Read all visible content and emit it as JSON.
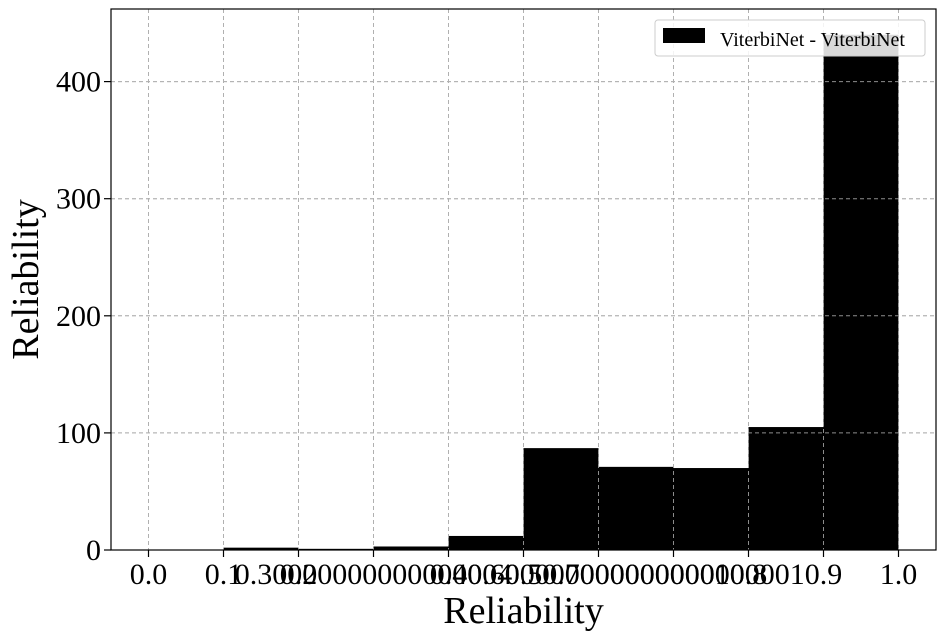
{
  "chart_data": {
    "type": "bar",
    "xlabel": "Reliability",
    "ylabel": "Reliability",
    "xlim": [
      -0.05,
      1.05
    ],
    "ylim": [
      0,
      462
    ],
    "grid": true,
    "legend_placement": "top-right",
    "x_ticks": [
      0.0,
      0.1,
      0.2,
      0.3,
      0.4,
      0.5,
      0.6,
      0.7,
      0.8,
      0.9,
      1.0
    ],
    "x_tick_labels": [
      "0.0",
      "0.1",
      "0.2",
      "0.30000000000000004",
      "0.4",
      "0.5",
      "0.6000000000000001",
      "0.7000000000000001",
      "0.8",
      "0.9",
      "1.0"
    ],
    "y_ticks": [
      0,
      100,
      200,
      300,
      400
    ],
    "y_tick_labels": [
      "0",
      "100",
      "200",
      "300",
      "400"
    ],
    "bin_edges": [
      0.0,
      0.1,
      0.2,
      0.3,
      0.4,
      0.5,
      0.6,
      0.7,
      0.8,
      0.9,
      1.0
    ],
    "series": [
      {
        "name": "ViterbiNet - ViterbiNet",
        "color": "#000000",
        "values": [
          0,
          2,
          1,
          3,
          12,
          87,
          71,
          70,
          105,
          440
        ]
      }
    ]
  }
}
